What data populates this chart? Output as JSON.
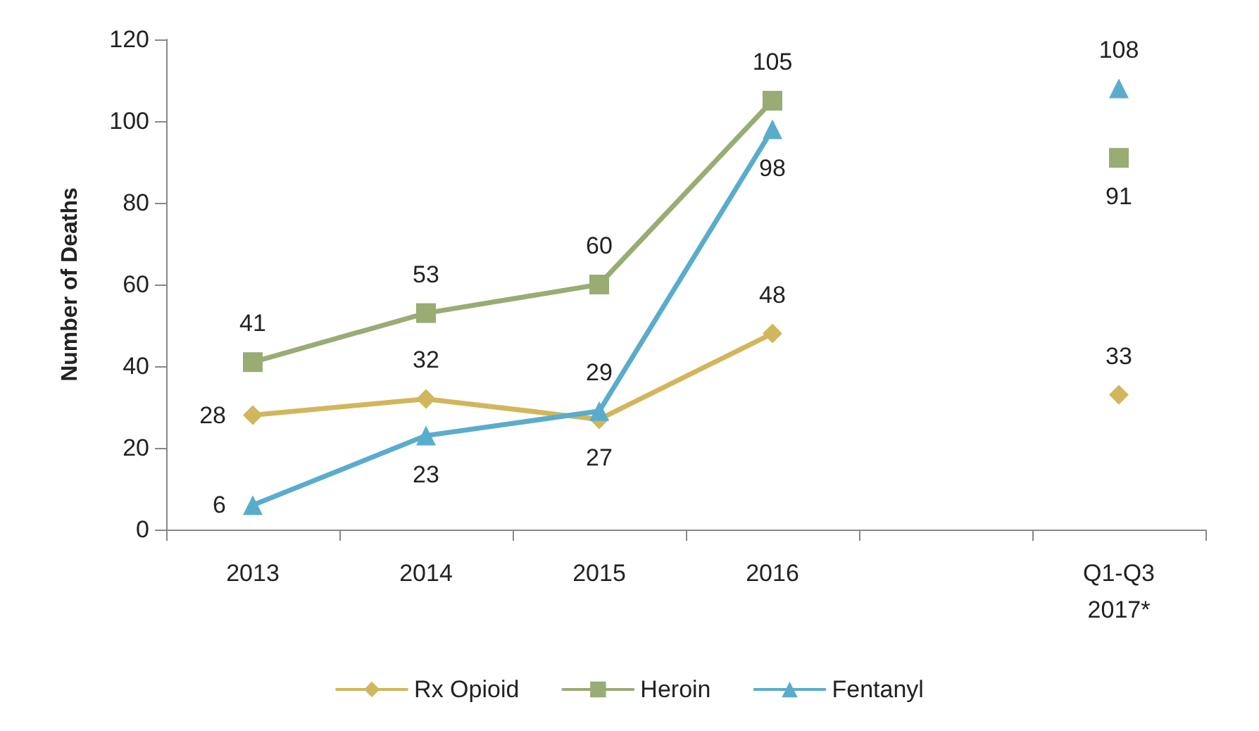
{
  "chart_data": {
    "type": "line",
    "ylabel": "Number of Deaths",
    "categories": [
      "2013",
      "2014",
      "2015",
      "2016",
      null,
      "Q1-Q3\n2017*"
    ],
    "series": [
      {
        "name": "Rx Opioid",
        "color": "#d1b65c",
        "marker": "diamond",
        "values": [
          28,
          32,
          27,
          48,
          null,
          33
        ]
      },
      {
        "name": "Heroin",
        "color": "#98ac74",
        "marker": "square",
        "values": [
          41,
          53,
          60,
          105,
          null,
          91
        ]
      },
      {
        "name": "Fentanyl",
        "color": "#5aaccb",
        "marker": "triangle",
        "values": [
          6,
          23,
          29,
          98,
          null,
          108
        ]
      }
    ],
    "ylim": [
      0,
      120
    ],
    "yticks": [
      0,
      20,
      40,
      60,
      80,
      100,
      120
    ],
    "grid": false,
    "legend": "bottom",
    "data_labels": true
  }
}
